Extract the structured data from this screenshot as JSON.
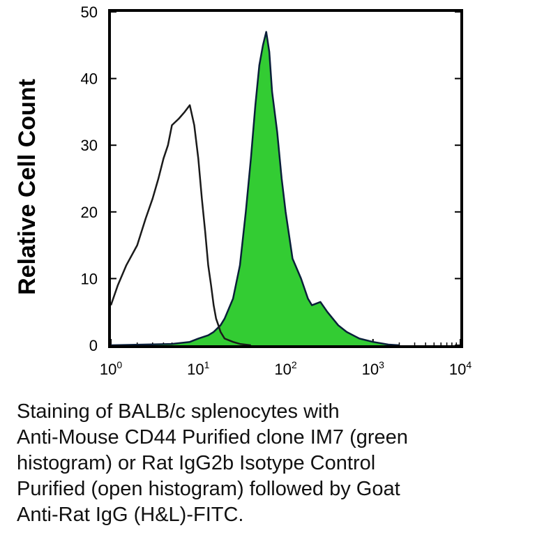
{
  "chart_data": {
    "type": "area",
    "title": "",
    "xlabel": "",
    "ylabel": "Relative Cell Count",
    "xscale": "log",
    "xlim": [
      1,
      10000
    ],
    "ylim": [
      0,
      50
    ],
    "yticks": [
      0,
      10,
      20,
      30,
      40,
      50
    ],
    "xtick_labels": [
      {
        "base": "10",
        "exp": "0"
      },
      {
        "base": "10",
        "exp": "1"
      },
      {
        "base": "10",
        "exp": "2"
      },
      {
        "base": "10",
        "exp": "3"
      },
      {
        "base": "10",
        "exp": "4"
      }
    ],
    "series": [
      {
        "style": "open",
        "fill": "none",
        "line_color": "#1a1a1a",
        "x": [
          1,
          1.2,
          1.5,
          2,
          2.5,
          3,
          3.5,
          4,
          4.5,
          5,
          6,
          7,
          8,
          9,
          10,
          11,
          12,
          13,
          14,
          15,
          16,
          17,
          18,
          20,
          25,
          30,
          40
        ],
        "y": [
          6,
          9,
          12,
          15,
          19,
          22,
          25,
          28,
          30,
          33,
          34,
          35,
          36,
          33,
          28,
          22,
          17,
          12,
          9,
          6,
          4,
          3,
          2,
          1,
          0.5,
          0.2,
          0
        ]
      },
      {
        "style": "filled",
        "fill": "#33cc33",
        "line_color": "#0a1f3a",
        "x": [
          1,
          5,
          8,
          10,
          13,
          15,
          18,
          20,
          25,
          30,
          35,
          40,
          45,
          50,
          55,
          60,
          65,
          70,
          80,
          90,
          100,
          120,
          150,
          180,
          200,
          250,
          300,
          400,
          500,
          700,
          1000,
          1500,
          2000
        ],
        "y": [
          0,
          0.2,
          0.5,
          1,
          1.5,
          2,
          3,
          4,
          7,
          12,
          20,
          28,
          36,
          42,
          45,
          47,
          44,
          38,
          32,
          25,
          20,
          13,
          10,
          7,
          6,
          6.5,
          5,
          3,
          2,
          1,
          0.5,
          0.1,
          0
        ]
      }
    ]
  },
  "caption": {
    "lines": [
      "Staining of BALB/c splenocytes with",
      "Anti-Mouse CD44 Purified clone IM7 (green",
      "histogram) or Rat IgG2b Isotype Control",
      "Purified (open histogram) followed by Goat",
      "Anti-Rat IgG (H&L)-FITC."
    ]
  }
}
